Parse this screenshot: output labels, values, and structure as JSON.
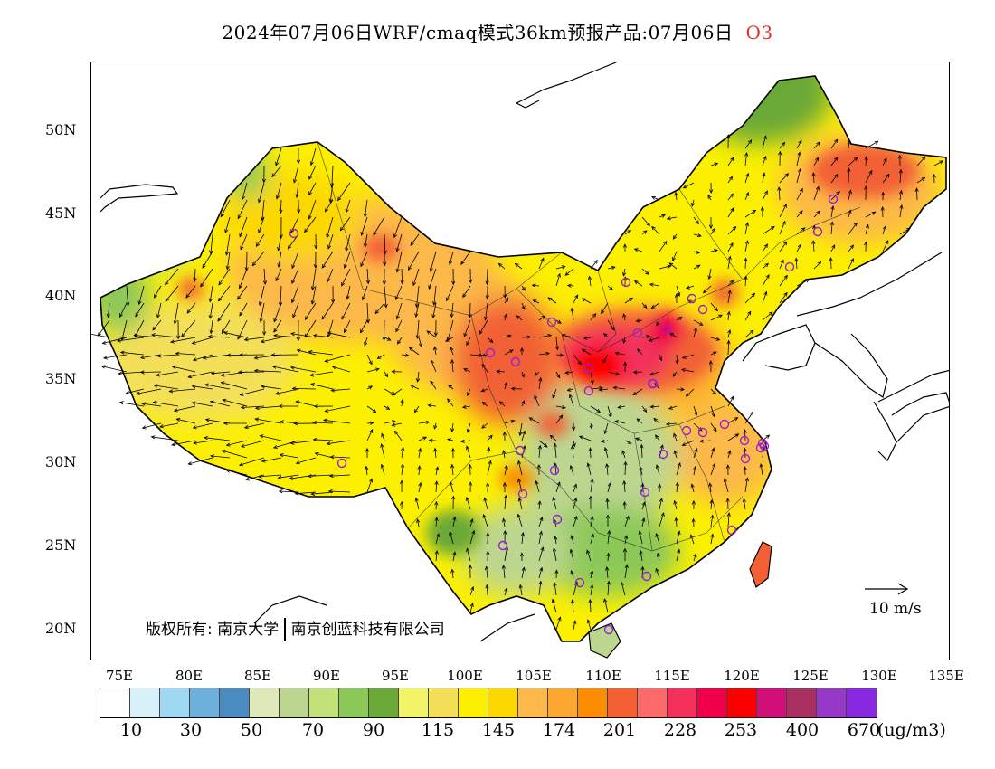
{
  "title": {
    "main": "2024年07月06日WRF/cmaq模式36km预报产品:07月06日",
    "species": "O3"
  },
  "map": {
    "lat_labels": [
      "50N",
      "45N",
      "40N",
      "35N",
      "30N",
      "25N",
      "20N"
    ],
    "lon_labels": [
      "75E",
      "80E",
      "85E",
      "90E",
      "95E",
      "100E",
      "105E",
      "110E",
      "115E",
      "120E",
      "125E",
      "130E",
      "135E"
    ],
    "copyright_label": "版权所有:",
    "copyright_org1": "南京大学",
    "copyright_org2": "南京创蓝科技有限公司",
    "wind_reference": "10 m/s"
  },
  "legend": {
    "colors": [
      "#ffffff",
      "#d7f0fa",
      "#9ed8f2",
      "#6cb0dc",
      "#4a8cc0",
      "#dfe8b8",
      "#bcd690",
      "#c2e07a",
      "#8cc858",
      "#6aa838",
      "#f2f468",
      "#f4e058",
      "#fcf000",
      "#fcd800",
      "#fcb848",
      "#fca830",
      "#fc8c00",
      "#f26034",
      "#fc6a6a",
      "#f2305a",
      "#f0004a",
      "#fc0000",
      "#d01078",
      "#a83060",
      "#9838c8",
      "#8828e0"
    ],
    "ticks": [
      "10",
      "30",
      "50",
      "70",
      "90",
      "115",
      "145",
      "174",
      "201",
      "228",
      "253",
      "400",
      "670"
    ],
    "unit": "(ug/m3)"
  }
}
